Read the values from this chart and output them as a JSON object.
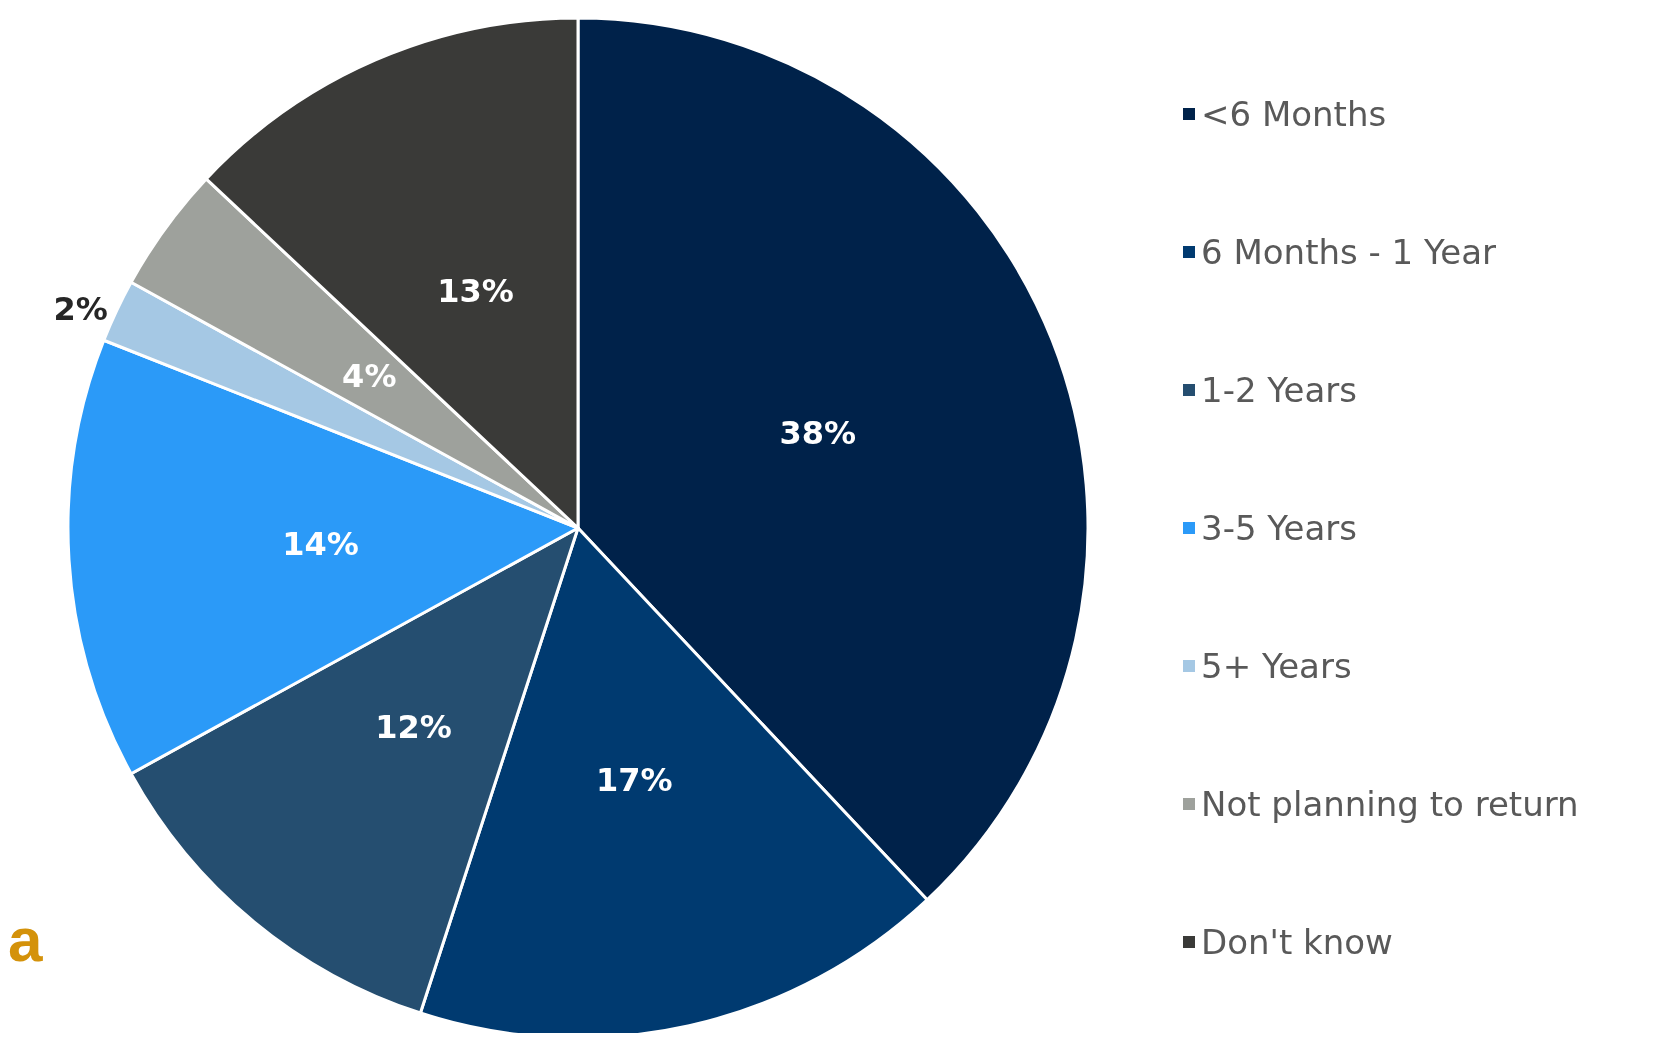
{
  "chart_data": {
    "type": "pie",
    "categories": [
      "<6 Months",
      "6 Months - 1 Year",
      "1-2 Years",
      "3-5 Years",
      "5+ Years",
      "Not planning to return",
      "Don't know"
    ],
    "values": [
      38,
      17,
      12,
      14,
      2,
      4,
      13
    ],
    "colors": [
      "#00224a",
      "#003a70",
      "#254e70",
      "#2b9af8",
      "#a5c8e4",
      "#9ea19c",
      "#3a3a38"
    ],
    "value_labels": [
      "38%",
      "17%",
      "12%",
      "14%",
      "2%",
      "4%",
      "13%"
    ],
    "legend": "right",
    "annotations": [
      "a"
    ]
  }
}
